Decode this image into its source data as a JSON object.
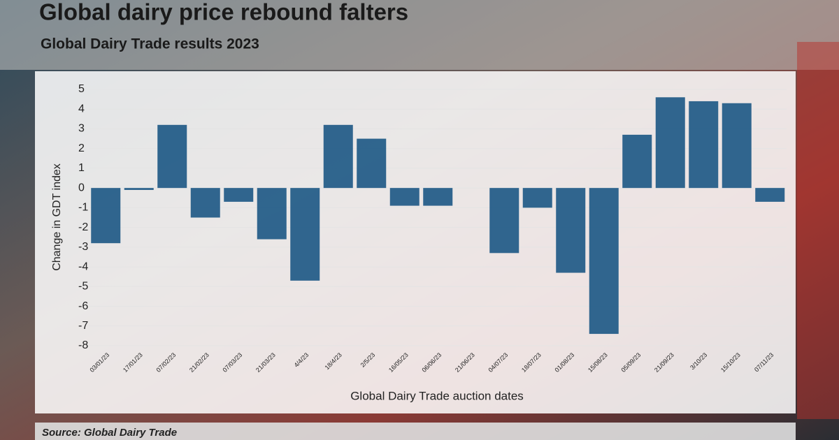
{
  "chart_data": {
    "type": "bar",
    "title": "Global dairy price rebound falters",
    "subtitle": "Global Dairy Trade results 2023",
    "y_label": "Change in GDT index",
    "x_label": "Global Dairy Trade auction dates",
    "source": "Source: Global Dairy Trade",
    "categories": [
      "03/01/23",
      "17/01/23",
      "07/02/23",
      "21/02/23",
      "07/03/23",
      "21/03/23",
      "4/4/23",
      "18/4/23",
      "2/5/23",
      "16/05/23",
      "06/06/23",
      "21/06/23",
      "04/07/23",
      "18/07/23",
      "01/08/23",
      "15/08/23",
      "05/09/23",
      "21/09/23",
      "3/10/23",
      "15/10/23",
      "07/11/23"
    ],
    "values": [
      -2.8,
      -0.1,
      3.2,
      -1.5,
      -0.7,
      -2.6,
      -4.7,
      3.2,
      2.5,
      -0.9,
      -0.9,
      0,
      -3.3,
      -1.0,
      -4.3,
      -7.4,
      2.7,
      4.6,
      4.4,
      4.3,
      -0.7
    ],
    "color": "#1f5a87",
    "ylim": [
      -8,
      5
    ],
    "yticks": [
      -8,
      -7,
      -6,
      -5,
      -4,
      -3,
      -2,
      -1,
      0,
      1,
      2,
      3,
      4,
      5
    ],
    "grid": true
  }
}
